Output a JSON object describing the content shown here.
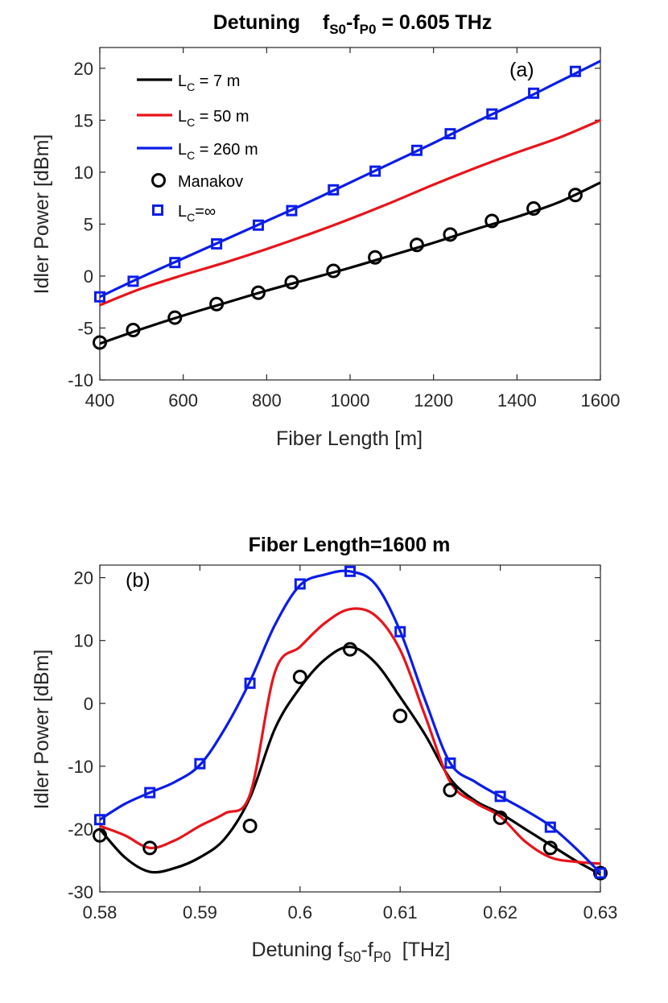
{
  "chart_data": [
    {
      "type": "line",
      "title": {
        "main": "Detuning",
        "f1": "f",
        "s1": "S0",
        "dash": "-",
        "f2": "f",
        "s2": "P0",
        "rest": " = 0.605 THz"
      },
      "panel_label": "(a)",
      "xlabel": "Fiber Length [m]",
      "ylabel": "Idler Power [dBm]",
      "xlim": [
        400,
        1600
      ],
      "ylim": [
        -10,
        22
      ],
      "xticks": [
        400,
        600,
        800,
        1000,
        1200,
        1400,
        1600
      ],
      "yticks": [
        -10,
        -5,
        0,
        5,
        10,
        15,
        20
      ],
      "legend": [
        {
          "kind": "line",
          "color": "#000000",
          "L": "L",
          "sub": "C",
          "rest": " = 7 m"
        },
        {
          "kind": "line",
          "color": "#e8141b",
          "L": "L",
          "sub": "C",
          "rest": " = 50 m"
        },
        {
          "kind": "line",
          "color": "#0b1de8",
          "L": "L",
          "sub": "C",
          "rest": " = 260 m"
        },
        {
          "kind": "circle",
          "color": "#000000",
          "label": "Manakov"
        },
        {
          "kind": "square",
          "color": "#0b1de8",
          "L": "L",
          "sub": "C",
          "rest": "=∞"
        }
      ],
      "series": [
        {
          "name": "LC = 7 m",
          "color": "#000000",
          "x": [
            400,
            500,
            600,
            700,
            800,
            900,
            1000,
            1100,
            1200,
            1300,
            1400,
            1500,
            1600
          ],
          "y": [
            -6.5,
            -5.1,
            -3.8,
            -2.6,
            -1.4,
            -0.3,
            0.8,
            2.0,
            3.2,
            4.5,
            5.7,
            7.1,
            9.0
          ]
        },
        {
          "name": "LC = 50 m",
          "color": "#e8141b",
          "x": [
            400,
            500,
            600,
            700,
            800,
            900,
            1000,
            1100,
            1200,
            1300,
            1400,
            1500,
            1600
          ],
          "y": [
            -2.8,
            -1.2,
            0.1,
            1.3,
            2.6,
            4.0,
            5.5,
            7.1,
            8.8,
            10.4,
            11.9,
            13.3,
            15.0
          ]
        },
        {
          "name": "LC = 260 m",
          "color": "#0b1de8",
          "x": [
            400,
            500,
            600,
            700,
            800,
            900,
            1000,
            1100,
            1200,
            1300,
            1400,
            1500,
            1600
          ],
          "y": [
            -2.0,
            -0.1,
            1.7,
            3.5,
            5.3,
            7.1,
            9.0,
            10.9,
            12.8,
            14.8,
            16.7,
            18.7,
            20.7
          ]
        },
        {
          "name": "Manakov",
          "marker": "circle",
          "color": "#000000",
          "x": [
            400,
            480,
            580,
            680,
            780,
            860,
            960,
            1060,
            1160,
            1240,
            1340,
            1440,
            1540
          ],
          "y": [
            -6.4,
            -5.2,
            -4.0,
            -2.7,
            -1.6,
            -0.6,
            0.5,
            1.8,
            3.0,
            4.0,
            5.3,
            6.5,
            7.8
          ]
        },
        {
          "name": "LC=∞",
          "marker": "square",
          "color": "#0b1de8",
          "x": [
            400,
            480,
            580,
            680,
            780,
            860,
            960,
            1060,
            1160,
            1240,
            1340,
            1440,
            1540
          ],
          "y": [
            -2.0,
            -0.5,
            1.3,
            3.1,
            4.9,
            6.3,
            8.3,
            10.1,
            12.1,
            13.7,
            15.6,
            17.6,
            19.7
          ]
        }
      ]
    },
    {
      "type": "line",
      "title": {
        "main": "Fiber Length=1600 m"
      },
      "panel_label": "(b)",
      "xlabel": {
        "pre": "Detuning ",
        "f1": "f",
        "s1": "S0",
        "dash": "-",
        "f2": "f",
        "s2": "P0",
        "rest": "  [THz]"
      },
      "ylabel": "Idler Power [dBm]",
      "xlim": [
        0.58,
        0.63
      ],
      "ylim": [
        -30,
        22
      ],
      "xticks": [
        0.58,
        0.59,
        0.6,
        0.61,
        0.62,
        0.63
      ],
      "yticks": [
        -30,
        -20,
        -10,
        0,
        10,
        20
      ],
      "series": [
        {
          "name": "LC = 7 m",
          "color": "#000000",
          "x": [
            0.58,
            0.5825,
            0.585,
            0.5875,
            0.59,
            0.5925,
            0.595,
            0.5975,
            0.6,
            0.6025,
            0.605,
            0.6075,
            0.61,
            0.6125,
            0.615,
            0.6175,
            0.62,
            0.6225,
            0.625,
            0.6275,
            0.63
          ],
          "y": [
            -20.0,
            -24.5,
            -26.8,
            -26.2,
            -24.5,
            -21.5,
            -15.0,
            -4.0,
            2.5,
            7.0,
            9.0,
            6.5,
            1.0,
            -5.0,
            -12.0,
            -15.5,
            -17.5,
            -20.0,
            -22.5,
            -25.0,
            -27.2
          ]
        },
        {
          "name": "LC = 50 m",
          "color": "#e8141b",
          "x": [
            0.58,
            0.5825,
            0.585,
            0.5875,
            0.59,
            0.5925,
            0.595,
            0.5975,
            0.6,
            0.6025,
            0.605,
            0.6075,
            0.61,
            0.6125,
            0.615,
            0.6175,
            0.62,
            0.6225,
            0.625,
            0.6275,
            0.63
          ],
          "y": [
            -19.5,
            -21.0,
            -23.0,
            -21.8,
            -19.5,
            -17.5,
            -14.5,
            5.0,
            9.0,
            12.8,
            15.0,
            14.0,
            8.5,
            -2.0,
            -12.5,
            -15.8,
            -18.0,
            -22.0,
            -24.5,
            -25.2,
            -25.5
          ]
        },
        {
          "name": "LC = 260 m",
          "color": "#0b1de8",
          "x": [
            0.58,
            0.5825,
            0.585,
            0.5875,
            0.59,
            0.5925,
            0.595,
            0.5975,
            0.6,
            0.6025,
            0.605,
            0.6075,
            0.61,
            0.6125,
            0.615,
            0.6175,
            0.62,
            0.6225,
            0.625,
            0.6275,
            0.63
          ],
          "y": [
            -18.5,
            -16.0,
            -14.2,
            -12.5,
            -9.8,
            -4.0,
            3.5,
            12.5,
            18.8,
            20.5,
            21.0,
            19.0,
            11.5,
            0.5,
            -9.5,
            -12.5,
            -14.8,
            -17.0,
            -19.5,
            -23.0,
            -27.0
          ]
        },
        {
          "name": "Manakov",
          "marker": "circle",
          "color": "#000000",
          "x": [
            0.58,
            0.585,
            0.595,
            0.6,
            0.605,
            0.61,
            0.615,
            0.62,
            0.625,
            0.63
          ],
          "y": [
            -21.0,
            -23.0,
            -19.5,
            4.2,
            8.6,
            -2.0,
            -13.8,
            -18.2,
            -23.0,
            -27.0
          ]
        },
        {
          "name": "LC=∞",
          "marker": "square",
          "color": "#0b1de8",
          "x": [
            0.58,
            0.585,
            0.59,
            0.595,
            0.6,
            0.605,
            0.61,
            0.615,
            0.62,
            0.625,
            0.63
          ],
          "y": [
            -18.5,
            -14.2,
            -9.6,
            3.2,
            19.0,
            21.0,
            11.4,
            -9.5,
            -14.8,
            -19.7,
            -27.0
          ]
        }
      ]
    }
  ]
}
